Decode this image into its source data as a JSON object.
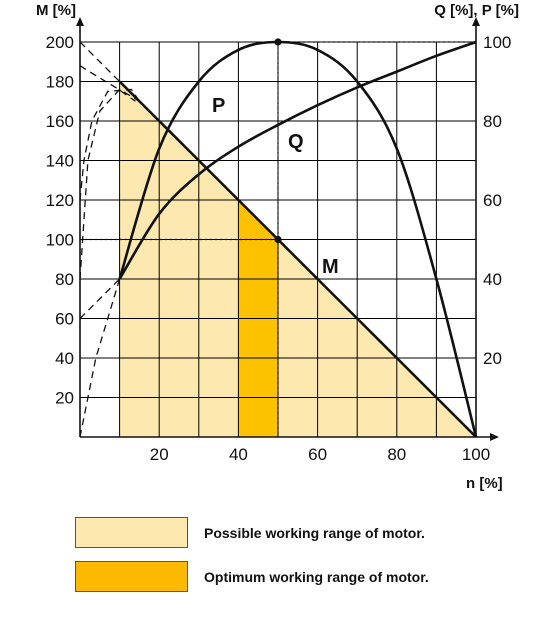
{
  "chart_data": {
    "type": "line",
    "xlabel": "n [%]",
    "ylabel_left": "M [%]",
    "ylabel_right": "Q [%], P [%]",
    "x_ticks": [
      20,
      40,
      60,
      80,
      100
    ],
    "y_left_ticks": [
      20,
      40,
      60,
      80,
      100,
      120,
      140,
      160,
      180,
      200
    ],
    "y_right_ticks": [
      20,
      40,
      60,
      80,
      100
    ],
    "xlim": [
      0,
      100
    ],
    "ylim_left": [
      0,
      200
    ],
    "ylim_right": [
      0,
      100
    ],
    "grid": true,
    "series": [
      {
        "name": "M",
        "axis": "left",
        "x": [
          10,
          15,
          20,
          30,
          40,
          50,
          60,
          70,
          80,
          90,
          100
        ],
        "values": [
          180,
          170,
          160,
          140,
          120,
          100,
          80,
          60,
          40,
          20,
          0
        ]
      },
      {
        "name": "Q",
        "axis": "right",
        "x": [
          10,
          20,
          30,
          40,
          50,
          60,
          70,
          80,
          90,
          100
        ],
        "values": [
          40,
          56.5,
          66.5,
          73.5,
          79,
          84,
          88.5,
          92.5,
          96.5,
          100
        ]
      },
      {
        "name": "P",
        "axis": "right",
        "x": [
          10,
          20,
          30,
          40,
          50,
          60,
          70,
          80,
          90,
          100
        ],
        "values": [
          40,
          73,
          90,
          98,
          100,
          98,
          90,
          73,
          40,
          0
        ]
      }
    ],
    "ranges": {
      "possible": {
        "x": [
          10,
          100
        ]
      },
      "optimum": {
        "x": [
          40,
          50
        ]
      }
    },
    "marker_points": [
      {
        "x": 50,
        "y": 100,
        "axis": "left"
      },
      {
        "x": 50,
        "y": 100,
        "axis": "right"
      }
    ],
    "colors": {
      "possible": "#fde8b0",
      "optimum": "#fcc200",
      "line": "#111111",
      "grid": "#000000"
    }
  },
  "legend": [
    {
      "label": "Possible working range of motor.",
      "color": "#fde8b0"
    },
    {
      "label": "Optimum working range of motor.",
      "color": "#fcb900"
    }
  ]
}
